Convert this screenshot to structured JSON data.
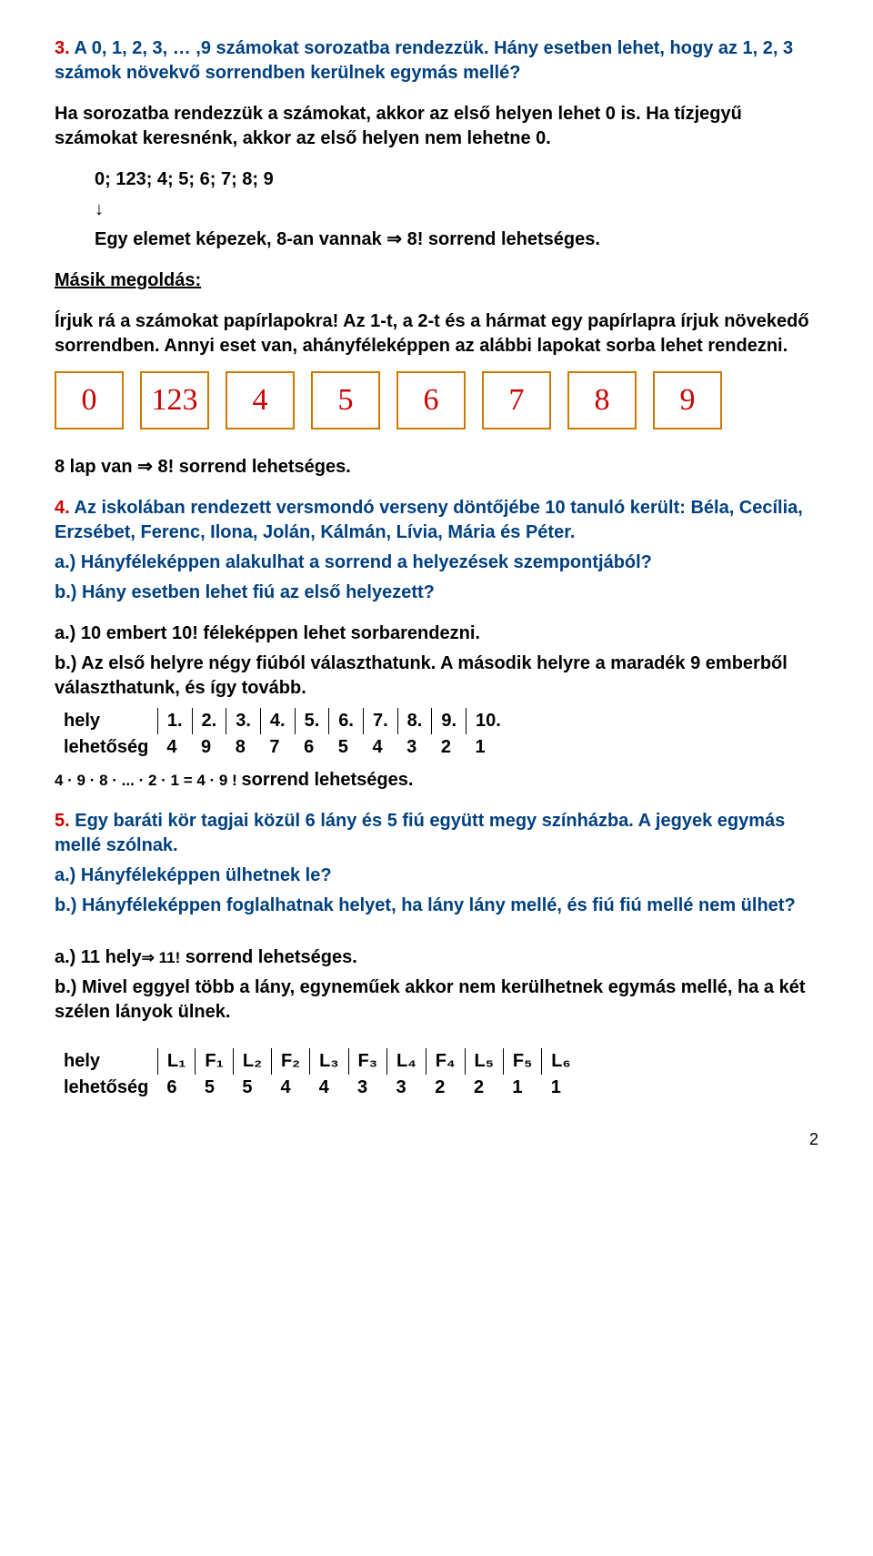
{
  "p3": {
    "num": "3.",
    "title": " A 0, 1, 2, 3, … ,9 számokat sorozatba rendezzük. Hány esetben lehet, hogy az 1, 2, 3 számok növekvő sorrendben kerülnek egymás mellé?",
    "line1": "Ha sorozatba rendezzük a számokat, akkor az első helyen lehet 0 is. Ha tízjegyű számokat keresnénk, akkor az első helyen nem lehetne 0.",
    "seq": "0; 123; 4; 5; 6; 7; 8; 9",
    "arrow": "↓",
    "line2": "Egy elemet képezek, 8-an vannak ⇒ 8! sorrend lehetséges.",
    "alt_title": "Másik megoldás:",
    "alt_body": "Írjuk rá a számokat papírlapokra! Az 1-t, a 2-t és a hármat egy papírlapra írjuk növekedő sorrendben. Annyi eset van, ahányféleképpen az alábbi lapokat sorba lehet rendezni.",
    "cards": [
      "0",
      "123",
      "4",
      "5",
      "6",
      "7",
      "8",
      "9"
    ],
    "conclusion": "8 lap van ⇒ 8! sorrend lehetséges."
  },
  "p4": {
    "num": "4.",
    "title": " Az iskolában rendezett versmondó verseny döntőjébe 10 tanuló került: Béla, Cecília, Erzsébet, Ferenc, Ilona, Jolán, Kálmán, Lívia, Mária és Péter.",
    "qa": "a.) Hányféleképpen alakulhat a sorrend a helyezések szempontjából?",
    "qb": "b.) Hány esetben lehet fiú az első helyezett?",
    "ans_a": "a.) 10 embert 10! féleképpen lehet sorbarendezni.",
    "ans_b": "b.) Az első helyre négy fiúból választhatunk. A második helyre a maradék 9 emberből választhatunk, és így tovább.",
    "row_header": "hely",
    "row_header2": "lehetőség",
    "cols": [
      "1.",
      "2.",
      "3.",
      "4.",
      "5.",
      "6.",
      "7.",
      "8.",
      "9.",
      "10."
    ],
    "vals": [
      "4",
      "9",
      "8",
      "7",
      "6",
      "5",
      "4",
      "3",
      "2",
      "1"
    ],
    "formula_prefix": "4 · 9 · 8 · ... · 2 · 1 = 4 · 9 ! ",
    "formula_suffix": "sorrend lehetséges."
  },
  "p5": {
    "num": "5.",
    "title": " Egy baráti kör tagjai közül 6 lány és 5 fiú együtt megy színházba. A jegyek egymás mellé szólnak.",
    "qa": "a.) Hányféleképpen ülhetnek le?",
    "qb": "b.) Hányféleképpen foglalhatnak helyet, ha lány lány mellé, és fiú fiú mellé nem ülhet?",
    "ans_a_pre": "a.) 11 hely",
    "ans_a_post": " sorrend lehetséges.",
    "ans_a_imply": "⇒ 11!",
    "ans_b": "b.) Mivel eggyel több a lány, egyneműek akkor nem kerülhetnek egymás mellé, ha a két szélen lányok ülnek.",
    "row_header": "hely",
    "row_header2": "lehetőség",
    "cols": [
      "L₁",
      "F₁",
      "L₂",
      "F₂",
      "L₃",
      "F₃",
      "L₄",
      "F₄",
      "L₅",
      "F₅",
      "L₆"
    ],
    "vals": [
      "6",
      "5",
      "5",
      "4",
      "4",
      "3",
      "3",
      "2",
      "2",
      "1",
      "1"
    ]
  },
  "pagenum": "2"
}
